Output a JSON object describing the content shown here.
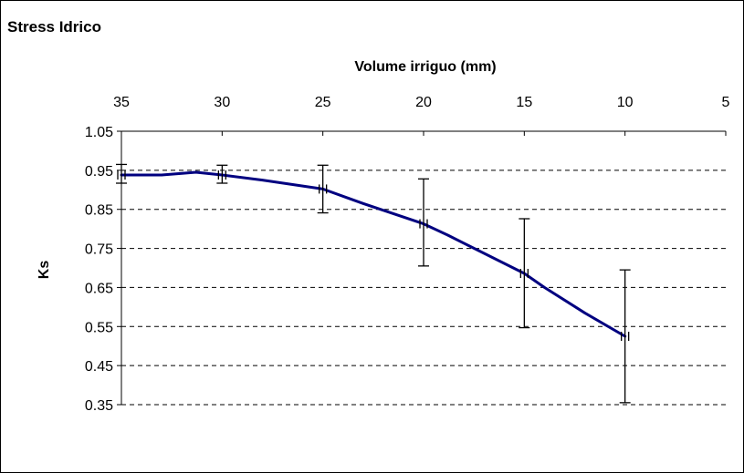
{
  "chart_data": {
    "type": "line",
    "title": "Stress Idrico",
    "xlabel": "Volume irriguo (mm)",
    "ylabel": "Ks",
    "x_axis_position": "top",
    "x_reversed": true,
    "xlim": [
      5,
      35
    ],
    "ylim": [
      0.35,
      1.05
    ],
    "x_ticks": [
      35,
      30,
      25,
      20,
      15,
      10,
      5
    ],
    "y_ticks": [
      "1.05",
      "0.95",
      "0.85",
      "0.75",
      "0.65",
      "0.55",
      "0.45",
      "0.35"
    ],
    "grid": "horizontal dashed",
    "line_color": "#000080",
    "series": [
      {
        "x": [
          35,
          33,
          32,
          31.3,
          30,
          28,
          25,
          23,
          20,
          18.8,
          15,
          14,
          12,
          10
        ],
        "y": [
          0.938,
          0.938,
          0.942,
          0.945,
          0.938,
          0.925,
          0.902,
          0.865,
          0.813,
          0.784,
          0.686,
          0.65,
          0.585,
          0.525
        ]
      }
    ],
    "error_bars": [
      {
        "x": 35,
        "y": 0.938,
        "low": 0.917,
        "high": 0.965
      },
      {
        "x": 30,
        "y": 0.938,
        "low": 0.917,
        "high": 0.963
      },
      {
        "x": 25,
        "y": 0.902,
        "low": 0.841,
        "high": 0.963
      },
      {
        "x": 20,
        "y": 0.813,
        "low": 0.705,
        "high": 0.928
      },
      {
        "x": 15,
        "y": 0.686,
        "low": 0.547,
        "high": 0.826
      },
      {
        "x": 10,
        "y": 0.525,
        "low": 0.355,
        "high": 0.695
      }
    ]
  }
}
